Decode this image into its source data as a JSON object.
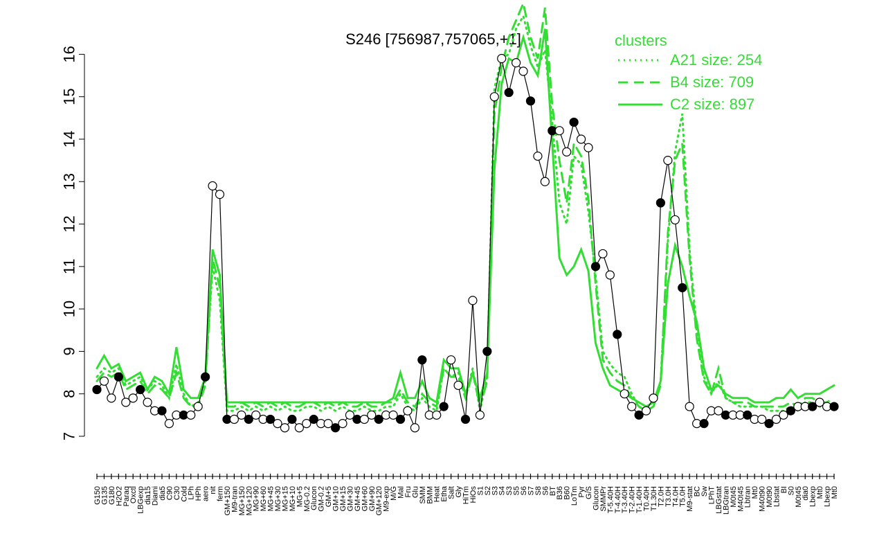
{
  "chart_data": {
    "type": "line",
    "title": "S246 [756987,757065,+1]",
    "xlabel": "",
    "ylabel": "",
    "ylim": [
      7,
      16.3
    ],
    "yticks": [
      7,
      8,
      9,
      10,
      11,
      12,
      13,
      14,
      15,
      16
    ],
    "grid": false,
    "legend": {
      "title": "clusters",
      "placement": "top-right",
      "color": "#33dd33",
      "entries": [
        {
          "label": "A21 size: 254",
          "style": "dotted"
        },
        {
          "label": "B4 size: 709",
          "style": "dashed"
        },
        {
          "label": "C2 size: 897",
          "style": "solid"
        }
      ]
    },
    "x_tick_labels": [
      "G150",
      "G135",
      "G180",
      "H2O2",
      "Paraq",
      "Oxctl",
      "LBGexp",
      "dia15",
      "Diami",
      "dia5",
      "C90",
      "C30",
      "Cold",
      "LPh",
      "HPh",
      "aero",
      "nit",
      "ferm",
      "GM+150",
      "M9-tran",
      "MG+150",
      "MG+120",
      "MG+90",
      "MG+60",
      "MG+45",
      "MG+30",
      "MG+15",
      "MG+10",
      "MG+5",
      "MG-0.2",
      "Glucon",
      "GM-0.2",
      "GM+5",
      "GM+10",
      "GM+15",
      "GM+30",
      "GM+45",
      "GM+60",
      "GM+90",
      "GM+120",
      "M9-exp",
      "M/G",
      "Mal",
      "Fru",
      "Glu",
      "SMM",
      "BMM",
      "Heat",
      "Etha",
      "Salt",
      "Gly",
      "HiTm",
      "HiOs",
      "S1",
      "S2",
      "S3",
      "S4",
      "S3",
      "S5",
      "S6",
      "S7",
      "S8",
      "S6",
      "BT",
      "B36",
      "B60",
      "LoTm",
      "Pyr",
      "G/S",
      "Glucon",
      "SMMPr",
      "T-5.40H",
      "T-4.40H",
      "T-3.40H",
      "T-2.40H",
      "T-1.40H",
      "T0.40H",
      "T1.30H",
      "T2.0H",
      "T3.0H",
      "T4.0H",
      "T5.0H",
      "M9-stat",
      "BC",
      "Sw",
      "LPhT",
      "LBGstat",
      "LBGtran",
      "M0t45",
      "M40t45",
      "Lbtran",
      "Mt0",
      "M40t90",
      "M0t90",
      "Lbstat",
      "BI",
      "S0",
      "M0t45",
      "dia0",
      "Lbexp",
      "Mt0",
      "Lbexp",
      "Mt0"
    ],
    "series": [
      {
        "name": "A21 size: 254",
        "style": "dotted",
        "color": "#33dd33",
        "values": [
          8.4,
          8.6,
          8.5,
          8.6,
          8.2,
          8.3,
          8.4,
          8.1,
          8.3,
          8.2,
          7.9,
          8.7,
          8.0,
          7.7,
          7.8,
          8.3,
          11.0,
          10.2,
          7.6,
          7.6,
          7.7,
          7.6,
          7.7,
          7.6,
          7.7,
          7.6,
          7.7,
          7.6,
          7.6,
          7.7,
          7.7,
          7.6,
          7.7,
          7.6,
          7.7,
          7.6,
          7.6,
          7.7,
          7.6,
          7.6,
          7.7,
          7.7,
          8.0,
          7.7,
          7.6,
          7.9,
          7.7,
          7.6,
          8.6,
          8.4,
          8.5,
          7.9,
          8.6,
          7.6,
          8.4,
          15.2,
          15.9,
          16.0,
          16.6,
          16.9,
          16.2,
          15.7,
          16.1,
          14.4,
          12.5,
          12.0,
          13.6,
          13.4,
          12.3,
          10.8,
          9.0,
          8.7,
          8.5,
          8.4,
          8.0,
          7.7,
          7.6,
          7.7,
          8.3,
          11.6,
          13.7,
          14.6,
          11.4,
          9.5,
          8.4,
          8.0,
          8.3,
          7.9,
          7.8,
          7.7,
          7.7,
          7.7,
          7.7,
          7.6,
          7.6,
          7.6,
          7.7,
          7.6,
          7.8,
          7.8,
          7.7,
          7.7,
          7.8
        ]
      },
      {
        "name": "B4 size: 709",
        "style": "dashed",
        "color": "#33dd33",
        "values": [
          8.3,
          8.5,
          8.4,
          8.5,
          8.1,
          8.2,
          8.3,
          8.0,
          8.2,
          8.1,
          7.9,
          8.5,
          7.9,
          7.7,
          7.7,
          8.2,
          11.2,
          10.5,
          7.7,
          7.7,
          7.8,
          7.7,
          7.8,
          7.7,
          7.8,
          7.7,
          7.8,
          7.7,
          7.7,
          7.8,
          7.8,
          7.7,
          7.8,
          7.7,
          7.8,
          7.7,
          7.7,
          7.8,
          7.7,
          7.7,
          7.8,
          7.8,
          8.1,
          7.8,
          7.7,
          8.0,
          7.8,
          7.7,
          8.6,
          8.4,
          8.4,
          7.9,
          8.5,
          7.7,
          8.3,
          14.6,
          15.7,
          16.4,
          16.8,
          17.2,
          16.4,
          15.9,
          17.1,
          14.8,
          13.5,
          12.5,
          13.9,
          13.6,
          12.6,
          10.6,
          8.8,
          8.5,
          8.3,
          8.2,
          7.9,
          7.7,
          7.6,
          7.7,
          8.2,
          11.8,
          13.5,
          13.9,
          11.2,
          9.3,
          8.3,
          8.0,
          8.6,
          7.9,
          7.8,
          7.8,
          7.8,
          7.7,
          7.7,
          7.7,
          7.7,
          7.7,
          7.8,
          7.7,
          7.9,
          7.9,
          7.8,
          7.8,
          7.9
        ]
      },
      {
        "name": "C2 size: 897",
        "style": "solid",
        "color": "#33dd33",
        "values": [
          8.6,
          8.9,
          8.6,
          8.7,
          8.3,
          8.4,
          8.5,
          8.1,
          8.4,
          8.3,
          8.0,
          9.1,
          8.1,
          7.9,
          7.9,
          8.4,
          11.4,
          10.8,
          7.8,
          7.8,
          7.8,
          7.8,
          7.8,
          7.8,
          7.8,
          7.8,
          7.8,
          7.8,
          7.8,
          7.8,
          7.8,
          7.8,
          7.8,
          7.8,
          7.8,
          7.8,
          7.8,
          7.8,
          7.8,
          7.8,
          7.8,
          7.9,
          8.5,
          7.9,
          7.9,
          8.3,
          7.9,
          7.8,
          8.8,
          8.6,
          8.6,
          8.0,
          8.5,
          7.9,
          8.5,
          13.3,
          15.3,
          15.9,
          15.8,
          16.4,
          15.8,
          15.5,
          16.6,
          13.9,
          11.2,
          10.8,
          11.0,
          11.4,
          10.9,
          9.2,
          8.6,
          8.2,
          8.1,
          8.0,
          7.9,
          7.8,
          7.7,
          7.8,
          8.3,
          10.6,
          11.5,
          11.0,
          10.3,
          9.7,
          8.6,
          8.1,
          8.2,
          8.0,
          7.9,
          7.9,
          7.9,
          7.8,
          7.8,
          7.8,
          7.9,
          7.9,
          8.1,
          7.9,
          8.0,
          8.0,
          8.0,
          8.1,
          8.2
        ]
      },
      {
        "name": "",
        "style": "points",
        "color": "#000000",
        "values": [
          8.1,
          8.3,
          7.9,
          8.4,
          7.8,
          7.9,
          8.1,
          7.8,
          7.6,
          7.6,
          7.3,
          7.5,
          7.5,
          7.5,
          7.7,
          8.4,
          12.9,
          12.7,
          7.4,
          7.4,
          7.5,
          7.4,
          7.5,
          7.4,
          7.4,
          7.3,
          7.2,
          7.4,
          7.2,
          7.3,
          7.4,
          7.3,
          7.3,
          7.2,
          7.3,
          7.5,
          7.4,
          7.4,
          7.5,
          7.4,
          7.5,
          7.5,
          7.4,
          7.6,
          7.2,
          8.8,
          7.5,
          7.5,
          7.7,
          8.8,
          8.2,
          7.4,
          10.2,
          7.5,
          9.0,
          15.0,
          15.9,
          15.1,
          15.8,
          15.6,
          14.9,
          13.6,
          13.0,
          14.2,
          14.2,
          13.7,
          14.4,
          14.0,
          13.8,
          11.0,
          11.3,
          10.8,
          9.4,
          8.0,
          7.7,
          7.5,
          7.6,
          7.9,
          12.5,
          13.5,
          12.1,
          10.5,
          7.7,
          7.3,
          7.3,
          7.6,
          7.6,
          7.5,
          7.5,
          7.5,
          7.5,
          7.4,
          7.4,
          7.3,
          7.4,
          7.5,
          7.6,
          7.7,
          7.7,
          7.7,
          7.8,
          7.7,
          7.7
        ]
      }
    ]
  }
}
